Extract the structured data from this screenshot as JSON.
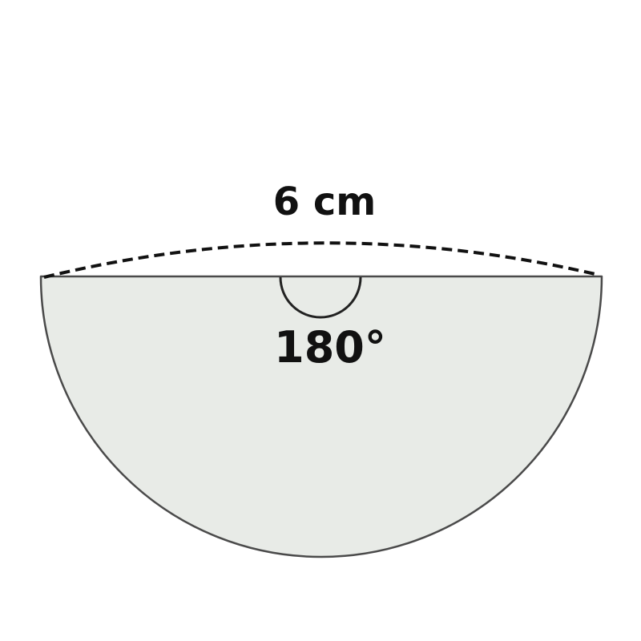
{
  "diagram": {
    "shape": "semicircle",
    "length_label": "6 cm",
    "angle_label": "180°",
    "colors": {
      "fill": "#e8ebe7",
      "outline": "#4a4a4a",
      "dashed": "#111111",
      "angle_arc": "#222222",
      "text": "#111111"
    }
  }
}
